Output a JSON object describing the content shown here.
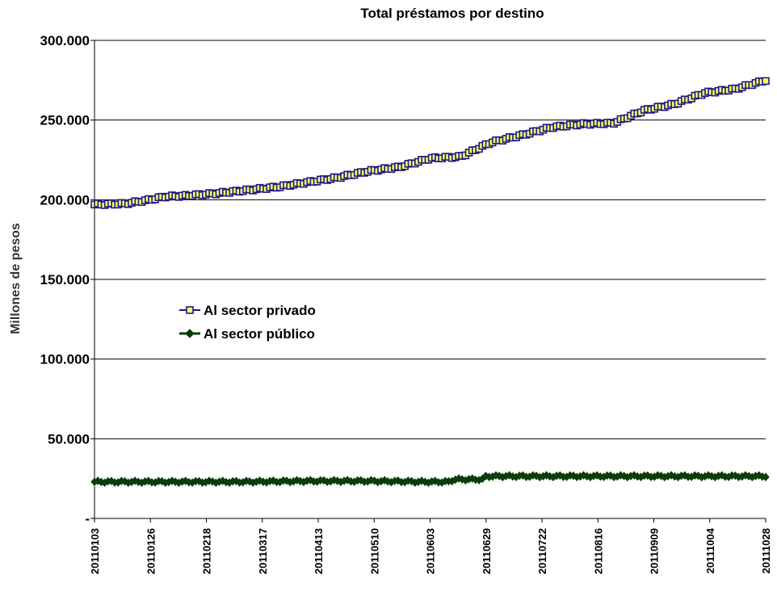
{
  "chart_data": {
    "type": "line",
    "title": "Total préstamos por destino",
    "xlabel": "",
    "ylabel": "Millones de pesos",
    "ylim": [
      0,
      300000
    ],
    "y_ticks": [
      {
        "value": 0,
        "label": "-"
      },
      {
        "value": 50000,
        "label": "50.000"
      },
      {
        "value": 100000,
        "label": "100.000"
      },
      {
        "value": 150000,
        "label": "150.000"
      },
      {
        "value": 200000,
        "label": "200.000"
      },
      {
        "value": 250000,
        "label": "250.000"
      },
      {
        "value": 300000,
        "label": "300.000"
      }
    ],
    "x_tick_labels": [
      "20110103",
      "20110126",
      "20110218",
      "20110317",
      "20110413",
      "20110510",
      "20110603",
      "20110629",
      "20110722",
      "20110816",
      "20110909",
      "20111004",
      "20111028"
    ],
    "grid": "horizontal",
    "legend_position": "left-middle",
    "x_points": 200,
    "series": [
      {
        "name": "Al sector privado",
        "color": "#1a1a8c",
        "marker": "square",
        "marker_fill": "#ffff66",
        "anchors": [
          [
            0,
            197000
          ],
          [
            12,
            197500
          ],
          [
            20,
            199500
          ],
          [
            28,
            202000
          ],
          [
            36,
            202500
          ],
          [
            48,
            204000
          ],
          [
            60,
            206000
          ],
          [
            72,
            208000
          ],
          [
            84,
            211000
          ],
          [
            96,
            214000
          ],
          [
            108,
            218000
          ],
          [
            120,
            220500
          ],
          [
            132,
            226000
          ],
          [
            144,
            227000
          ],
          [
            156,
            236000
          ],
          [
            168,
            240500
          ],
          [
            180,
            245500
          ],
          [
            192,
            247500
          ],
          [
            204,
            248000
          ],
          [
            216,
            256000
          ],
          [
            228,
            260000
          ],
          [
            240,
            267000
          ],
          [
            252,
            269500
          ],
          [
            264,
            275000
          ]
        ]
      },
      {
        "name": "Al sector público",
        "color": "#0b3d0b",
        "marker": "diamond",
        "marker_fill": "#0b3d0b",
        "anchors": [
          [
            0,
            23000
          ],
          [
            60,
            23000
          ],
          [
            84,
            23500
          ],
          [
            108,
            23500
          ],
          [
            130,
            23000
          ],
          [
            140,
            23000
          ],
          [
            141,
            24500
          ],
          [
            153,
            24500
          ],
          [
            154,
            26500
          ],
          [
            240,
            26500
          ],
          [
            264,
            26500
          ]
        ]
      }
    ]
  }
}
